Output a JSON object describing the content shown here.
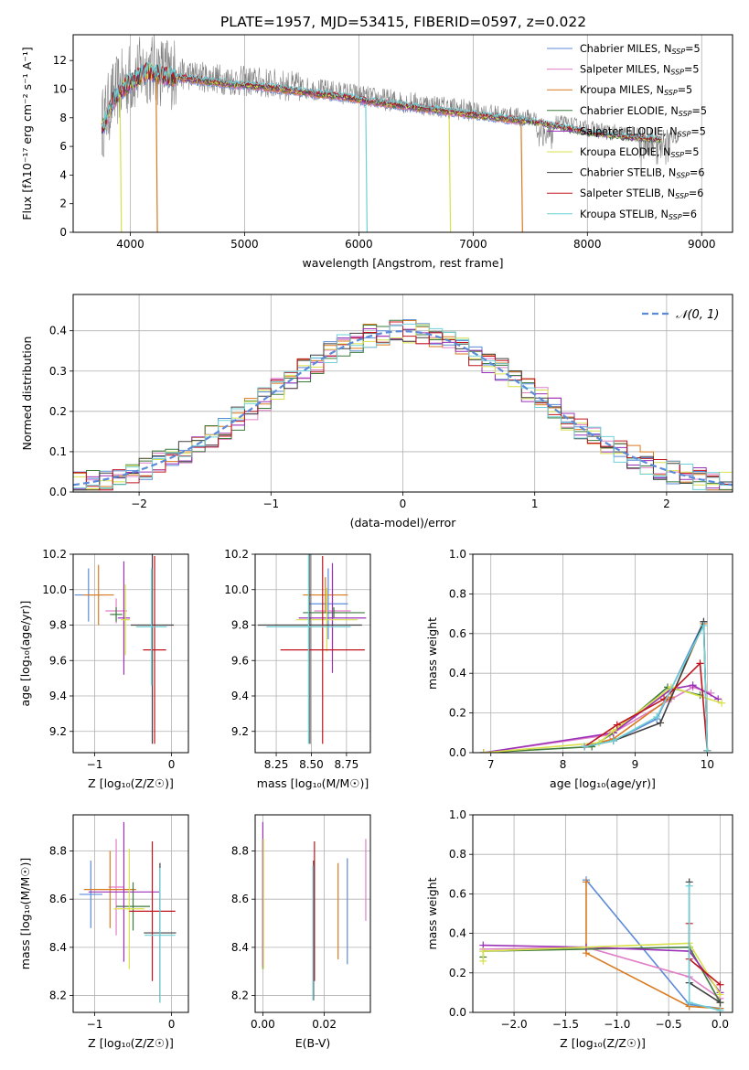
{
  "figure_title": "PLATE=1957, MJD=53415, FIBERID=0597, z=0.022",
  "colors": {
    "Chabrier MILES": "#5b8bd8",
    "Salpeter MILES": "#e07ec8",
    "Kroupa MILES": "#d97a1e",
    "Chabrier ELODIE": "#3d7a3d",
    "Salpeter ELODIE": "#9b30b8",
    "Kroupa ELODIE": "#d8e04a",
    "Chabrier STELIB": "#404040",
    "Salpeter STELIB": "#c0141e",
    "Kroupa STELIB": "#6fd0d6",
    "grey_data": "#808080",
    "normal_curve": "#5b8bd8",
    "grid": "#b0b0b0"
  },
  "chart_data": [
    {
      "id": "spectrum",
      "type": "line",
      "title": "PLATE=1957, MJD=53415, FIBERID=0597, z=0.022",
      "xlabel": "wavelength [Angstrom, rest frame]",
      "ylabel": "Flux [fλ10⁻¹⁷ erg cm⁻² s⁻¹ A⁻¹]",
      "xlim": [
        3500,
        9270
      ],
      "ylim": [
        0,
        13.8
      ],
      "xticks": [
        "4000",
        "5000",
        "6000",
        "7000",
        "8000",
        "9000"
      ],
      "xtick_values": [
        4000,
        5000,
        6000,
        7000,
        8000,
        9000
      ],
      "yticks": [
        "0",
        "2",
        "4",
        "6",
        "8",
        "10",
        "12"
      ],
      "ytick_values": [
        0,
        2,
        4,
        6,
        8,
        10,
        12
      ],
      "legend_position": "top-right",
      "legend": [
        {
          "label": "Chabrier MILES, N",
          "sub": "SSP",
          "tail": "=5"
        },
        {
          "label": "Salpeter MILES, N",
          "sub": "SSP",
          "tail": "=5"
        },
        {
          "label": "Kroupa MILES, N",
          "sub": "SSP",
          "tail": "=5"
        },
        {
          "label": "Chabrier ELODIE, N",
          "sub": "SSP",
          "tail": "=5"
        },
        {
          "label": "Salpeter ELODIE, N",
          "sub": "SSP",
          "tail": "=5"
        },
        {
          "label": "Kroupa ELODIE, N",
          "sub": "SSP",
          "tail": "=5"
        },
        {
          "label": "Chabrier STELIB, N",
          "sub": "SSP",
          "tail": "=6"
        },
        {
          "label": "Salpeter STELIB, N",
          "sub": "SSP",
          "tail": "=6"
        },
        {
          "label": "Kroupa STELIB, N",
          "sub": "SSP",
          "tail": "=6"
        }
      ],
      "data_envelope": {
        "x": [
          3750,
          3850,
          3950,
          4050,
          4150,
          4300,
          4500,
          4700,
          4900,
          5100,
          5300,
          5500,
          5700,
          5900,
          6100,
          6300,
          6500,
          6700,
          6900,
          7100,
          7300,
          7500,
          7700,
          7900,
          8100,
          8300,
          8500,
          8700
        ],
        "y": [
          7.5,
          9.5,
          10.5,
          11.0,
          11.5,
          11.2,
          11.0,
          10.8,
          10.6,
          10.5,
          10.3,
          10.1,
          9.9,
          9.7,
          9.4,
          9.2,
          9.0,
          8.8,
          8.6,
          8.4,
          8.2,
          8.0,
          7.7,
          7.4,
          7.1,
          6.9,
          6.8,
          6.7
        ]
      },
      "model_dropouts": [
        {
          "series": "Kroupa ELODIE",
          "x": 3910
        },
        {
          "series": "Kroupa MILES",
          "x": 4225
        },
        {
          "series": "Kroupa STELIB",
          "x": 6060
        },
        {
          "series": "Kroupa ELODIE",
          "x": 6790
        },
        {
          "series": "Kroupa MILES",
          "x": 7420
        }
      ]
    },
    {
      "id": "residuals",
      "type": "histogram",
      "xlabel": "(data-model)/error",
      "ylabel": "Normed distribution",
      "xlim": [
        -2.5,
        2.5
      ],
      "ylim": [
        0,
        0.49
      ],
      "xticks": [
        "−2",
        "−1",
        "0",
        "1",
        "2"
      ],
      "xtick_values": [
        -2,
        -1,
        0,
        1,
        2
      ],
      "yticks": [
        "0.0",
        "0.1",
        "0.2",
        "0.3",
        "0.4"
      ],
      "ytick_values": [
        0,
        0.1,
        0.2,
        0.3,
        0.4
      ],
      "legend": [
        "𝒩(0, 1)"
      ],
      "legend_position": "top-right",
      "bin_width": 0.1,
      "curve": "normal(0,1)"
    },
    {
      "id": "age_vs_Z",
      "type": "errorbar",
      "xlabel": "Z [log₁₀(Z/Z☉)]",
      "ylabel": "age  [log₁₀(age/yr)]",
      "xlim": [
        -1.28,
        0.22
      ],
      "ylim": [
        9.08,
        10.2
      ],
      "xticks": [
        "−1",
        "0"
      ],
      "xtick_values": [
        -1,
        0
      ],
      "yticks": [
        "9.2",
        "9.4",
        "9.6",
        "9.8",
        "10.0",
        "10.2"
      ],
      "ytick_values": [
        9.2,
        9.4,
        9.6,
        9.8,
        10.0,
        10.2
      ],
      "points": [
        {
          "series": "Chabrier MILES",
          "x": -1.08,
          "xerr": 0.18,
          "y": 9.97,
          "yerr": 0.15
        },
        {
          "series": "Salpeter MILES",
          "x": -0.72,
          "xerr": 0.14,
          "y": 9.88,
          "yerr": 0.07
        },
        {
          "series": "Kroupa MILES",
          "x": -0.95,
          "xerr": 0.2,
          "y": 9.97,
          "yerr": 0.17
        },
        {
          "series": "Chabrier ELODIE",
          "x": -0.72,
          "xerr": 0.08,
          "y": 9.86,
          "yerr": 0.04
        },
        {
          "series": "Salpeter ELODIE",
          "x": -0.62,
          "xerr": 0.08,
          "y": 9.84,
          "yerr": 0.32
        },
        {
          "series": "Kroupa ELODIE",
          "x": -0.6,
          "xerr": 0.06,
          "y": 9.83,
          "yerr": 0.2
        },
        {
          "series": "Chabrier STELIB",
          "x": -0.25,
          "xerr": 0.28,
          "y": 9.8,
          "yerr": 0.67
        },
        {
          "series": "Salpeter STELIB",
          "x": -0.22,
          "xerr": 0.15,
          "y": 9.66,
          "yerr": 0.53
        },
        {
          "series": "Kroupa STELIB",
          "x": -0.26,
          "xerr": 0.2,
          "y": 9.79,
          "yerr": 0.33
        }
      ]
    },
    {
      "id": "age_vs_mass",
      "type": "errorbar",
      "xlabel": "mass [log₁₀(M/M☉)]",
      "ylabel": "",
      "xlim": [
        8.1,
        8.92
      ],
      "ylim": [
        9.08,
        10.2
      ],
      "xticks": [
        "8.25",
        "8.50",
        "8.75"
      ],
      "xtick_values": [
        8.25,
        8.5,
        8.75
      ],
      "yticks": [
        "9.2",
        "9.4",
        "9.6",
        "9.8",
        "10.0",
        "10.2"
      ],
      "ytick_values": [
        9.2,
        9.4,
        9.6,
        9.8,
        10.0,
        10.2
      ],
      "points": [
        {
          "series": "Chabrier MILES",
          "x": 8.62,
          "xerr": 0.14,
          "y": 9.92,
          "yerr": 0.2
        },
        {
          "series": "Salpeter MILES",
          "x": 8.65,
          "xerr": 0.13,
          "y": 9.88,
          "yerr": 0.23
        },
        {
          "series": "Kroupa MILES",
          "x": 8.6,
          "xerr": 0.16,
          "y": 9.97,
          "yerr": 0.1
        },
        {
          "series": "Chabrier ELODIE",
          "x": 8.66,
          "xerr": 0.22,
          "y": 9.87,
          "yerr": 0.03
        },
        {
          "series": "Salpeter ELODIE",
          "x": 8.65,
          "xerr": 0.24,
          "y": 9.84,
          "yerr": 0.31
        },
        {
          "series": "Kroupa ELODIE",
          "x": 8.61,
          "xerr": 0.22,
          "y": 9.83,
          "yerr": 0.18
        },
        {
          "series": "Chabrier STELIB",
          "x": 8.49,
          "xerr": 0.37,
          "y": 9.8,
          "yerr": 0.67
        },
        {
          "series": "Salpeter STELIB",
          "x": 8.58,
          "xerr": 0.3,
          "y": 9.66,
          "yerr": 0.53
        },
        {
          "series": "Kroupa STELIB",
          "x": 8.48,
          "xerr": 0.3,
          "y": 9.79,
          "yerr": 0.66
        }
      ]
    },
    {
      "id": "weight_vs_age",
      "type": "line",
      "xlabel": "age  [log₁₀(age/yr)]",
      "ylabel": "mass weight",
      "xlim": [
        6.75,
        10.35
      ],
      "ylim": [
        0,
        1.0
      ],
      "xticks": [
        "7",
        "8",
        "9",
        "10"
      ],
      "xtick_values": [
        7,
        8,
        9,
        10
      ],
      "yticks": [
        "0.0",
        "0.2",
        "0.4",
        "0.6",
        "0.8",
        "1.0"
      ],
      "ytick_values": [
        0,
        0.2,
        0.4,
        0.6,
        0.8,
        1.0
      ],
      "series": [
        {
          "name": "Chabrier MILES",
          "x": [
            8.3,
            8.7,
            9.3,
            9.95
          ],
          "y": [
            0.03,
            0.06,
            0.17,
            0.66
          ]
        },
        {
          "name": "Salpeter MILES",
          "x": [
            6.9,
            8.65,
            9.5,
            9.8,
            10.05
          ],
          "y": [
            0.0,
            0.09,
            0.27,
            0.33,
            0.3
          ]
        },
        {
          "name": "Kroupa MILES",
          "x": [
            8.3,
            8.7,
            9.5,
            9.95,
            10.0
          ],
          "y": [
            0.03,
            0.07,
            0.28,
            0.65,
            0.01
          ]
        },
        {
          "name": "Chabrier ELODIE",
          "x": [
            6.9,
            8.4,
            8.7,
            9.45,
            9.9
          ],
          "y": [
            0.0,
            0.03,
            0.1,
            0.33,
            0.29
          ]
        },
        {
          "name": "Salpeter ELODIE",
          "x": [
            6.9,
            8.7,
            9.5,
            9.8,
            10.15
          ],
          "y": [
            0.0,
            0.1,
            0.32,
            0.34,
            0.27
          ]
        },
        {
          "name": "Kroupa ELODIE",
          "x": [
            6.9,
            8.5,
            8.7,
            9.5,
            10.2
          ],
          "y": [
            0.0,
            0.05,
            0.11,
            0.33,
            0.25
          ]
        },
        {
          "name": "Chabrier STELIB",
          "x": [
            8.3,
            8.7,
            9.35,
            9.95,
            10.0
          ],
          "y": [
            0.03,
            0.06,
            0.15,
            0.66,
            0.01
          ]
        },
        {
          "name": "Salpeter STELIB",
          "x": [
            8.3,
            8.75,
            9.4,
            9.9,
            10.0
          ],
          "y": [
            0.03,
            0.14,
            0.27,
            0.45,
            0.01
          ]
        },
        {
          "name": "Kroupa STELIB",
          "x": [
            8.3,
            8.7,
            9.3,
            9.95,
            10.0
          ],
          "y": [
            0.03,
            0.06,
            0.18,
            0.64,
            0.01
          ]
        }
      ]
    },
    {
      "id": "mass_vs_Z",
      "type": "errorbar",
      "xlabel": "Z [log₁₀(Z/Z☉)]",
      "ylabel": "mass [log₁₀(M/M☉)]",
      "xlim": [
        -1.28,
        0.22
      ],
      "ylim": [
        8.13,
        8.95
      ],
      "xticks": [
        "−1",
        "0"
      ],
      "xtick_values": [
        -1,
        0
      ],
      "yticks": [
        "8.2",
        "8.4",
        "8.6",
        "8.8"
      ],
      "ytick_values": [
        8.2,
        8.4,
        8.6,
        8.8
      ],
      "points": [
        {
          "series": "Chabrier MILES",
          "x": -1.05,
          "xerr": 0.15,
          "y": 8.62,
          "yerr": 0.14
        },
        {
          "series": "Salpeter MILES",
          "x": -0.72,
          "xerr": 0.1,
          "y": 8.65,
          "yerr": 0.2
        },
        {
          "series": "Kroupa MILES",
          "x": -0.8,
          "xerr": 0.34,
          "y": 8.64,
          "yerr": 0.16
        },
        {
          "series": "Chabrier ELODIE",
          "x": -0.5,
          "xerr": 0.22,
          "y": 8.57,
          "yerr": 0.1
        },
        {
          "series": "Salpeter ELODIE",
          "x": -0.62,
          "xerr": 0.46,
          "y": 8.63,
          "yerr": 0.29
        },
        {
          "series": "Kroupa ELODIE",
          "x": -0.55,
          "xerr": 0.2,
          "y": 8.56,
          "yerr": 0.25
        },
        {
          "series": "Chabrier STELIB",
          "x": -0.15,
          "xerr": 0.21,
          "y": 8.46,
          "yerr": 0.29
        },
        {
          "series": "Salpeter STELIB",
          "x": -0.25,
          "xerr": 0.3,
          "y": 8.55,
          "yerr": 0.29
        },
        {
          "series": "Kroupa STELIB",
          "x": -0.15,
          "xerr": 0.2,
          "y": 8.45,
          "yerr": 0.28
        }
      ]
    },
    {
      "id": "mass_vs_ebv",
      "type": "errorbar",
      "xlabel": "E(B-V)",
      "ylabel": "",
      "xlim": [
        -0.0025,
        0.035
      ],
      "ylim": [
        8.13,
        8.95
      ],
      "xticks": [
        "0.00",
        "0.02"
      ],
      "xtick_values": [
        0.0,
        0.02
      ],
      "yticks": [
        "8.2",
        "8.4",
        "8.6",
        "8.8"
      ],
      "ytick_values": [
        8.2,
        8.4,
        8.6,
        8.8
      ],
      "points": [
        {
          "series": "Chabrier MILES",
          "x": 0.0275,
          "y": 8.55,
          "yerr": 0.22
        },
        {
          "series": "Salpeter MILES",
          "x": 0.0335,
          "y": 8.68,
          "yerr": 0.17
        },
        {
          "series": "Kroupa MILES",
          "x": 0.0245,
          "y": 8.55,
          "yerr": 0.2
        },
        {
          "series": "Chabrier ELODIE",
          "x": 0.0,
          "y": 8.58,
          "yerr": 0.27
        },
        {
          "series": "Salpeter ELODIE",
          "x": 0.0,
          "y": 8.62,
          "yerr": 0.3
        },
        {
          "series": "Kroupa ELODIE",
          "x": 0.0002,
          "y": 8.58,
          "yerr": 0.27
        },
        {
          "series": "Chabrier STELIB",
          "x": 0.0165,
          "y": 8.47,
          "yerr": 0.29
        },
        {
          "series": "Salpeter STELIB",
          "x": 0.0168,
          "y": 8.55,
          "yerr": 0.29
        },
        {
          "series": "Kroupa STELIB",
          "x": 0.0163,
          "y": 8.46,
          "yerr": 0.28
        }
      ]
    },
    {
      "id": "weight_vs_Z",
      "type": "line",
      "xlabel": "Z [log₁₀(Z/Z☉)]",
      "ylabel": "mass weight",
      "xlim": [
        -2.4,
        0.12
      ],
      "ylim": [
        0,
        1.0
      ],
      "xticks": [
        "−2.0",
        "−1.5",
        "−1.0",
        "−0.5",
        "0.0"
      ],
      "xtick_values": [
        -2.0,
        -1.5,
        -1.0,
        -0.5,
        0.0
      ],
      "yticks": [
        "0.0",
        "0.2",
        "0.4",
        "0.6",
        "0.8",
        "1.0"
      ],
      "ytick_values": [
        0,
        0.2,
        0.4,
        0.6,
        0.8,
        1.0
      ],
      "series": [
        {
          "name": "Chabrier MILES",
          "x": [
            -1.3,
            -0.3,
            0.0
          ],
          "y": [
            0.67,
            0.04,
            0.02
          ]
        },
        {
          "name": "Salpeter MILES",
          "x": [
            -2.3,
            -1.3,
            -0.3,
            0.0
          ],
          "y": [
            0.32,
            0.33,
            0.18,
            0.07
          ]
        },
        {
          "name": "Kroupa MILES",
          "x": [
            -1.3,
            -1.3,
            -0.3,
            0.0
          ],
          "y": [
            0.66,
            0.3,
            0.03,
            0.02
          ]
        },
        {
          "name": "Chabrier ELODIE",
          "x": [
            -2.3,
            -2.3,
            -0.3,
            0.0
          ],
          "y": [
            0.28,
            0.31,
            0.33,
            0.05
          ]
        },
        {
          "name": "Salpeter ELODIE",
          "x": [
            -2.3,
            -1.3,
            -0.3,
            0.0
          ],
          "y": [
            0.34,
            0.33,
            0.31,
            0.1
          ]
        },
        {
          "name": "Kroupa ELODIE",
          "x": [
            -2.3,
            -2.3,
            -0.3,
            0.0
          ],
          "y": [
            0.26,
            0.31,
            0.35,
            0.09
          ]
        },
        {
          "name": "Chabrier STELIB",
          "x": [
            -0.3,
            -0.3,
            0.0
          ],
          "y": [
            0.66,
            0.15,
            0.05
          ]
        },
        {
          "name": "Salpeter STELIB",
          "x": [
            -0.3,
            -0.3,
            0.0
          ],
          "y": [
            0.45,
            0.27,
            0.14
          ]
        },
        {
          "name": "Kroupa STELIB",
          "x": [
            -0.3,
            -0.3,
            0.0
          ],
          "y": [
            0.64,
            0.05,
            0.01
          ]
        }
      ]
    }
  ]
}
